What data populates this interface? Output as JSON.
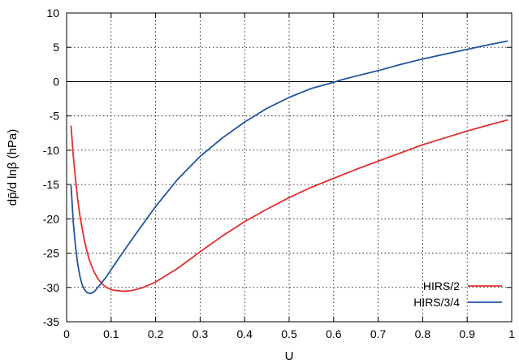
{
  "chart_data": {
    "type": "line",
    "xlabel": "U",
    "ylabel": "dp̄/d lnβ (hPa)",
    "xlim": [
      0,
      1
    ],
    "ylim": [
      -35,
      10
    ],
    "x_ticks": [
      0,
      0.1,
      0.2,
      0.3,
      0.4,
      0.5,
      0.6,
      0.7,
      0.8,
      0.9,
      1
    ],
    "x_tick_labels": [
      "0",
      "0.1",
      "0.2",
      "0.3",
      "0.4",
      "0.5",
      "0.6",
      "0.7",
      "0.8",
      "0.9",
      "1"
    ],
    "y_ticks": [
      10,
      5,
      0,
      -5,
      -10,
      -15,
      -20,
      -25,
      -30,
      -35
    ],
    "y_tick_labels": [
      "10",
      "5",
      "0",
      "-5",
      "-10",
      "-15",
      "-20",
      "-25",
      "-30",
      "-35"
    ],
    "grid": true,
    "zero_line": true,
    "legend_position": "bottom-right",
    "series": [
      {
        "name": "HIRS/2",
        "color": "#e03030",
        "x": [
          0.01,
          0.015,
          0.02,
          0.025,
          0.03,
          0.04,
          0.05,
          0.06,
          0.07,
          0.08,
          0.09,
          0.1,
          0.11,
          0.12,
          0.13,
          0.14,
          0.15,
          0.17,
          0.2,
          0.25,
          0.3,
          0.35,
          0.4,
          0.45,
          0.5,
          0.55,
          0.6,
          0.65,
          0.7,
          0.75,
          0.8,
          0.85,
          0.9,
          0.95,
          0.99
        ],
        "y": [
          -6.5,
          -10.8,
          -14.2,
          -17.2,
          -19.6,
          -23.2,
          -25.8,
          -27.5,
          -28.7,
          -29.5,
          -30.0,
          -30.3,
          -30.45,
          -30.5,
          -30.55,
          -30.5,
          -30.4,
          -30.05,
          -29.2,
          -27.2,
          -24.8,
          -22.5,
          -20.4,
          -18.6,
          -16.9,
          -15.4,
          -14.1,
          -12.8,
          -11.6,
          -10.4,
          -9.2,
          -8.2,
          -7.2,
          -6.3,
          -5.6
        ]
      },
      {
        "name": "HIRS/3/4",
        "color": "#2255a0",
        "x": [
          0.01,
          0.015,
          0.02,
          0.025,
          0.03,
          0.035,
          0.04,
          0.045,
          0.05,
          0.055,
          0.06,
          0.065,
          0.07,
          0.08,
          0.09,
          0.1,
          0.12,
          0.15,
          0.2,
          0.25,
          0.3,
          0.35,
          0.4,
          0.45,
          0.5,
          0.55,
          0.6,
          0.62,
          0.65,
          0.7,
          0.75,
          0.8,
          0.85,
          0.9,
          0.95,
          0.99
        ],
        "y": [
          -15.2,
          -20.5,
          -24.0,
          -26.6,
          -28.4,
          -29.6,
          -30.3,
          -30.7,
          -30.85,
          -30.85,
          -30.7,
          -30.4,
          -30.0,
          -29.2,
          -28.4,
          -27.4,
          -25.5,
          -22.7,
          -18.2,
          -14.2,
          -10.9,
          -8.2,
          -5.9,
          -3.9,
          -2.3,
          -1.0,
          -0.1,
          0.3,
          0.8,
          1.6,
          2.5,
          3.3,
          4.0,
          4.7,
          5.4,
          5.9
        ]
      }
    ]
  }
}
